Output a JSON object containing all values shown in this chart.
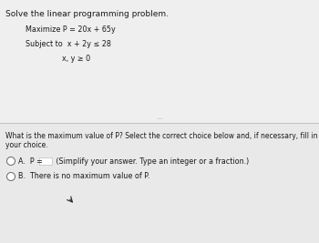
{
  "title": "Solve the linear programming problem.",
  "line1": "Maximize P = 20x + 65y",
  "line2": "Subject to  x + 2y ≤ 28",
  "line3": "x, y ≥ 0",
  "question_line1": "What is the maximum value of P? Select the correct choice below and, if necessary, fill in the answer box to complete",
  "question_line2": "your choice.",
  "optionA_pre": "A.  P =",
  "optionA_post": " (Simplify your answer. Type an integer or a fraction.)",
  "optionB": "B.  There is no maximum value of P.",
  "bg_top": "#efefef",
  "bg_bottom": "#e9e9e9",
  "text_color": "#1a1a1a",
  "radio_color": "#666666",
  "box_color": "#cccccc",
  "separator_color": "#bbbbbb",
  "font_size_title": 6.5,
  "font_size_body": 5.8,
  "font_size_question": 5.5,
  "font_size_options": 5.8
}
